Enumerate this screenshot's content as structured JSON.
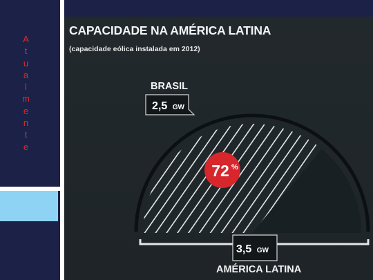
{
  "sidebar": {
    "vertical_text": [
      "A",
      "t",
      "u",
      "a",
      "l",
      "m",
      "e",
      "n",
      "t",
      "e"
    ]
  },
  "slide": {
    "title": "CAPACIDADE NA AMÉRICA LATINA",
    "subtitle": "(capacidade eólica instalada em 2012)"
  },
  "chart_data": {
    "type": "pie",
    "subtype": "semicircle",
    "slices": [
      {
        "label": "BRASIL",
        "value": 2.5,
        "unit": "GW",
        "value_text": "2,5",
        "unit_text": "GW",
        "color": "#ffffff",
        "pattern": "diagonal-hatch"
      },
      {
        "label": "AMÉRICA LATINA",
        "value": 3.5,
        "unit": "GW",
        "value_text": "3,5",
        "unit_text": "GW",
        "color": "#182023",
        "role": "total"
      }
    ],
    "share": {
      "value": 72,
      "number_text": "72",
      "unit_text": "%",
      "color": "#d7262c"
    }
  }
}
